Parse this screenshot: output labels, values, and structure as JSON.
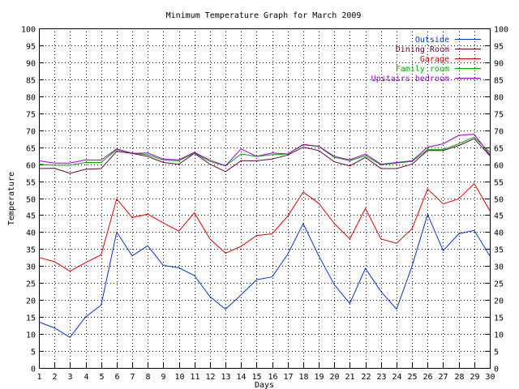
{
  "chart_data": {
    "type": "line",
    "title": "Minimum Temperature Graph for March 2009",
    "xlabel": "Days",
    "ylabel": "Temperature",
    "xlim": [
      1,
      30
    ],
    "ylim": [
      0,
      100
    ],
    "grid": true,
    "legend_position": "top-right",
    "x": [
      1,
      2,
      3,
      4,
      5,
      6,
      7,
      8,
      9,
      10,
      11,
      12,
      13,
      14,
      15,
      16,
      17,
      18,
      19,
      20,
      21,
      22,
      23,
      24,
      25,
      26,
      27,
      28,
      29,
      30
    ],
    "x_ticks": [
      "1",
      "2",
      "3",
      "4",
      "5",
      "6",
      "7",
      "8",
      "9",
      "10",
      "11",
      "12",
      "13",
      "14",
      "15",
      "16",
      "17",
      "18",
      "19",
      "20",
      "21",
      "22",
      "23",
      "24",
      "25",
      "26",
      "27",
      "28",
      "29",
      "30"
    ],
    "y_ticks": [
      "0",
      "5",
      "10",
      "15",
      "20",
      "25",
      "30",
      "35",
      "40",
      "45",
      "50",
      "55",
      "60",
      "65",
      "70",
      "75",
      "80",
      "85",
      "90",
      "95",
      "100"
    ],
    "series": [
      {
        "name": "Outside",
        "color": "#0033cc",
        "values": [
          13.5,
          11.8,
          9.0,
          15.0,
          18.5,
          40.0,
          33.0,
          36.0,
          30.2,
          29.5,
          27.2,
          21.0,
          17.3,
          21.5,
          26.0,
          26.8,
          33.5,
          42.5,
          33.0,
          24.5,
          19.0,
          29.3,
          22.5,
          17.3,
          30.0,
          45.2,
          34.5,
          39.5,
          40.5,
          33.0
        ]
      },
      {
        "name": "Dining Room",
        "color": "#660033",
        "values": [
          58.7,
          58.8,
          57.3,
          58.5,
          58.7,
          63.8,
          63.2,
          62.3,
          60.5,
          60.0,
          63.2,
          60.0,
          57.8,
          61.0,
          61.0,
          61.5,
          62.7,
          65.0,
          64.0,
          60.7,
          59.5,
          62.0,
          58.7,
          58.7,
          60.0,
          64.0,
          64.0,
          65.5,
          67.5,
          62.5
        ]
      },
      {
        "name": "Garage",
        "color": "#dd0000",
        "values": [
          32.5,
          31.3,
          28.5,
          31.0,
          33.3,
          49.8,
          44.3,
          45.3,
          42.7,
          40.3,
          45.7,
          38.0,
          33.8,
          35.8,
          39.0,
          39.5,
          44.7,
          51.8,
          48.5,
          42.5,
          38.0,
          47.0,
          38.0,
          36.7,
          41.0,
          52.7,
          48.3,
          49.8,
          54.3,
          46.3
        ]
      },
      {
        "name": "Family room",
        "color": "#00aa00",
        "values": [
          60.0,
          59.7,
          59.7,
          60.5,
          60.5,
          64.3,
          63.3,
          62.8,
          61.2,
          61.0,
          63.3,
          60.8,
          59.5,
          63.0,
          62.3,
          62.8,
          63.0,
          65.7,
          65.2,
          62.0,
          61.0,
          62.5,
          59.8,
          60.3,
          60.8,
          64.3,
          64.3,
          66.0,
          68.0,
          63.5
        ]
      },
      {
        "name": "Upstairs bedroom",
        "color": "#9900cc",
        "values": [
          61.0,
          60.3,
          60.3,
          61.3,
          61.2,
          64.5,
          63.2,
          63.3,
          61.5,
          61.3,
          63.5,
          61.2,
          59.5,
          64.5,
          62.3,
          63.3,
          63.0,
          65.8,
          65.3,
          62.3,
          61.3,
          63.0,
          60.0,
          60.5,
          61.0,
          65.0,
          66.0,
          68.5,
          68.8,
          62.8
        ]
      }
    ]
  }
}
